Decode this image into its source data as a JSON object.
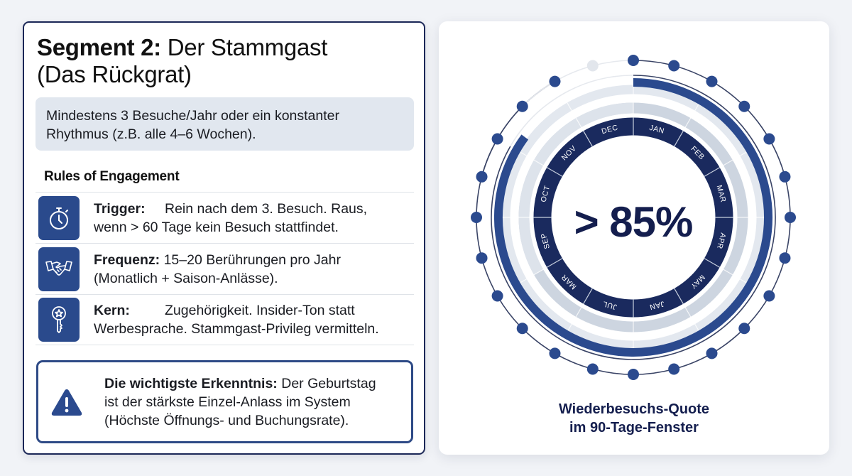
{
  "left_panel": {
    "title_bold": "Segment 2:",
    "title_regular_line1": " Der Stammgast",
    "title_line2": "(Das Rückgrat)",
    "definition_line1": "Mindestens 3 Besuche/Jahr oder ein konstanter",
    "definition_line2": "Rhythmus (z.B. alle 4–6 Wochen).",
    "rules_heading": "Rules of Engagement",
    "rules": [
      {
        "icon": "stopwatch-icon",
        "label": "Trigger:",
        "line1": "Rein nach dem 3. Besuch. Raus,",
        "line2": "wenn > 60 Tage kein Besuch stattfindet."
      },
      {
        "icon": "handshake-icon",
        "label": "Frequenz:",
        "line1": " 15–20 Berührungen pro Jahr",
        "line2": "(Monatlich + Saison-Anlässe)."
      },
      {
        "icon": "key-star-icon",
        "label": "Kern:",
        "line1": "Zugehörigkeit. Insider-Ton statt",
        "line2": "Werbesprache. Stammgast-Privileg vermitteln."
      }
    ],
    "insight": {
      "icon": "warning-icon",
      "label": "Die wichtigste Erkenntnis:",
      "line1": " Der Geburtstag",
      "line2": "ist der stärkste Einzel-Anlass im System",
      "line3": "(Höchste Öffnungs- und Buchungsrate)."
    }
  },
  "right_panel": {
    "stat_value": "> 85%",
    "caption_line1": "Wiederbesuchs-Quote",
    "caption_line2": "im 90-Tage-Fenster",
    "ring_months": [
      "JAN",
      "FEB",
      "MAR",
      "APR",
      "MAY",
      "JAN",
      "JUL",
      "MAR",
      "SEP",
      "OCT",
      "NOV",
      "DEC"
    ],
    "progress_percent": 85,
    "colors": {
      "navy": "#1a2a5e",
      "blue": "#2b4a8e",
      "light_gray": "#e3e8ef",
      "mid_gray": "#cdd5e0",
      "dot": "#2b4a8e",
      "dot_faded": "#e2e6ec"
    }
  }
}
